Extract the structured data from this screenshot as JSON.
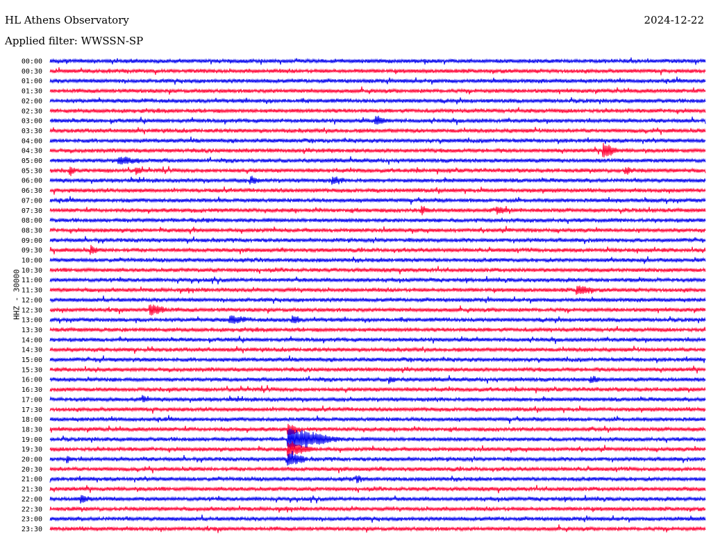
{
  "header": {
    "station": "HL Athens Observatory",
    "date": "2024-12-22",
    "filter": "Applied filter: WWSSN-SP"
  },
  "chart_data": {
    "type": "line",
    "ylabel": "HHZ - 30000",
    "colors": {
      "even": "#0000ee",
      "odd": "#ff0033"
    },
    "row_labels": [
      "00:00",
      "00:30",
      "01:00",
      "01:30",
      "02:00",
      "02:30",
      "03:00",
      "03:30",
      "04:00",
      "04:30",
      "05:00",
      "05:30",
      "06:00",
      "06:30",
      "07:00",
      "07:30",
      "08:00",
      "08:30",
      "09:00",
      "09:30",
      "10:00",
      "10:30",
      "11:00",
      "11:30",
      "12:00",
      "12:30",
      "13:00",
      "13:30",
      "14:00",
      "14:30",
      "15:00",
      "15:30",
      "16:00",
      "16:30",
      "17:00",
      "17:30",
      "18:00",
      "18:30",
      "19:00",
      "19:30",
      "20:00",
      "20:30",
      "21:00",
      "21:30",
      "22:00",
      "22:30",
      "23:00",
      "23:30"
    ],
    "time_window_minutes": 30
  }
}
